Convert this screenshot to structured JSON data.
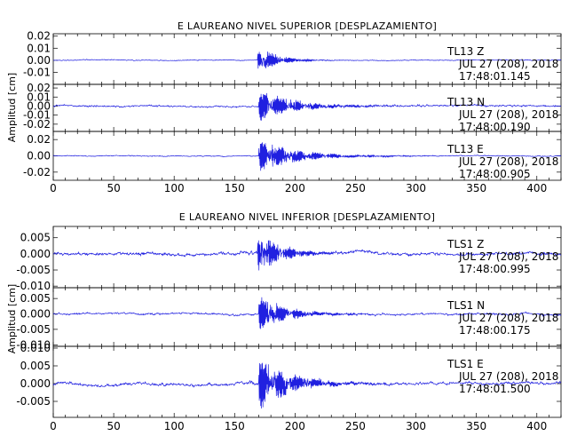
{
  "chart_data": [
    {
      "type": "line",
      "title": "E LAUREANO NIVEL SUPERIOR [DESPLAZAMIENTO]",
      "ylabel": "Amplitud [cm]",
      "xlim": [
        0,
        420
      ],
      "xticks": [
        "0",
        "50",
        "100",
        "150",
        "200",
        "250",
        "300",
        "350",
        "400"
      ],
      "line_color": "#2020e0",
      "traces": [
        {
          "station": "TL13",
          "component": "Z",
          "date": "JUL 27 (208), 2018",
          "time": "17:48:01.145",
          "ylim": [
            -0.02,
            0.022
          ],
          "yticks": [
            "0.02",
            "0.01",
            "0.00",
            "-0.01"
          ],
          "onset_s": 169,
          "peak_amplitude": 0.015,
          "pre_event_noise": 0.0004,
          "coda_decay_s": 14
        },
        {
          "station": "TL13",
          "component": "N",
          "date": "JUL 27 (208), 2018",
          "time": "17:48:00.190",
          "ylim": [
            -0.028,
            0.024
          ],
          "yticks": [
            "0.02",
            "0.01",
            "0.00",
            "-0.01",
            "-0.02"
          ],
          "onset_s": 170,
          "peak_amplitude": 0.019,
          "pre_event_noise": 0.0012,
          "coda_decay_s": 28
        },
        {
          "station": "TL13",
          "component": "E",
          "date": "JUL 27 (208), 2018",
          "time": "17:48:00.905",
          "ylim": [
            -0.03,
            0.03
          ],
          "yticks": [
            "0.02",
            "0.00",
            "-0.02"
          ],
          "onset_s": 170,
          "peak_amplitude": 0.022,
          "pre_event_noise": 0.0007,
          "coda_decay_s": 30
        }
      ]
    },
    {
      "type": "line",
      "title": "E LAUREANO NIVEL INFERIOR [DESPLAZAMIENTO]",
      "ylabel": "Amplitud [cm]",
      "xlim": [
        0,
        420
      ],
      "xticks": [
        "0",
        "50",
        "100",
        "150",
        "200",
        "250",
        "300",
        "350",
        "400"
      ],
      "line_color": "#2020e0",
      "traces": [
        {
          "station": "TLS1",
          "component": "Z",
          "date": "JUL 27 (208), 2018",
          "time": "17:48:00.995",
          "ylim": [
            -0.0105,
            0.0085
          ],
          "yticks": [
            "0.005",
            "0.000",
            "-0.005",
            "-0.010"
          ],
          "onset_s": 169,
          "peak_amplitude": 0.008,
          "pre_event_noise": 0.0006,
          "coda_decay_s": 18
        },
        {
          "station": "TLS1",
          "component": "N",
          "date": "JUL 27 (208), 2018",
          "time": "17:48:00.175",
          "ylim": [
            -0.0105,
            0.0085
          ],
          "yticks": [
            "0.005",
            "0.000",
            "-0.005",
            "-0.010"
          ],
          "onset_s": 170,
          "peak_amplitude": 0.0065,
          "pre_event_noise": 0.0004,
          "coda_decay_s": 22
        },
        {
          "station": "TLS1",
          "component": "E",
          "date": "JUL 27 (208), 2018",
          "time": "17:48:01.500",
          "ylim": [
            -0.0095,
            0.0105
          ],
          "yticks": [
            "0.010",
            "0.005",
            "0.000",
            "-0.005"
          ],
          "onset_s": 170,
          "peak_amplitude": 0.0085,
          "pre_event_noise": 0.0005,
          "coda_decay_s": 25
        }
      ]
    }
  ]
}
